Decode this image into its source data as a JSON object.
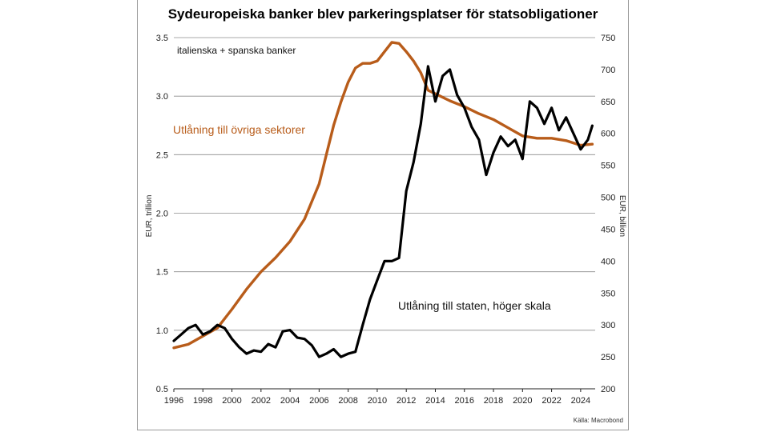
{
  "chart_data": {
    "type": "line",
    "title": "Sydeuropeiska banker blev parkeringsplatser för statsobligationer",
    "legend_text": "italienska + spanska banker",
    "ylabel_left": "EUR, trillion",
    "ylabel_right": "EUR, billion",
    "source": "Källa: Macrobond",
    "xlim": [
      1996,
      2025
    ],
    "ylim_left": [
      0.5,
      3.5
    ],
    "ylim_right": [
      200,
      750
    ],
    "x_ticks": [
      "1996",
      "1998",
      "2000",
      "2002",
      "2004",
      "2006",
      "2008",
      "2010",
      "2012",
      "2014",
      "2016",
      "2018",
      "2020",
      "2022",
      "2024"
    ],
    "y_ticks_left": [
      "0.5",
      "1.0",
      "1.5",
      "2.0",
      "2.5",
      "3.0",
      "3.5"
    ],
    "y_ticks_right": [
      "200",
      "250",
      "300",
      "350",
      "400",
      "450",
      "500",
      "550",
      "600",
      "650",
      "700",
      "750"
    ],
    "grid": "horizontal",
    "series": [
      {
        "name": "Utlåning till övriga sektorer",
        "axis": "left",
        "color": "#b85c1a",
        "points": [
          [
            1996,
            0.85
          ],
          [
            1997,
            0.88
          ],
          [
            1998,
            0.95
          ],
          [
            1999,
            1.02
          ],
          [
            2000,
            1.18
          ],
          [
            2001,
            1.35
          ],
          [
            2002,
            1.5
          ],
          [
            2003,
            1.62
          ],
          [
            2004,
            1.76
          ],
          [
            2005,
            1.95
          ],
          [
            2006,
            2.25
          ],
          [
            2006.5,
            2.5
          ],
          [
            2007,
            2.75
          ],
          [
            2007.5,
            2.95
          ],
          [
            2008,
            3.12
          ],
          [
            2008.5,
            3.24
          ],
          [
            2009,
            3.28
          ],
          [
            2009.5,
            3.28
          ],
          [
            2010,
            3.3
          ],
          [
            2010.5,
            3.38
          ],
          [
            2011,
            3.46
          ],
          [
            2011.5,
            3.45
          ],
          [
            2012,
            3.38
          ],
          [
            2012.5,
            3.3
          ],
          [
            2013,
            3.2
          ],
          [
            2013.5,
            3.05
          ],
          [
            2014,
            3.02
          ],
          [
            2015,
            2.96
          ],
          [
            2016,
            2.91
          ],
          [
            2017,
            2.85
          ],
          [
            2018,
            2.8
          ],
          [
            2019,
            2.73
          ],
          [
            2020,
            2.66
          ],
          [
            2021,
            2.64
          ],
          [
            2022,
            2.64
          ],
          [
            2023,
            2.62
          ],
          [
            2024,
            2.58
          ],
          [
            2024.8,
            2.59
          ]
        ]
      },
      {
        "name": "Utlåning till staten, höger skala",
        "axis": "right",
        "color": "#000000",
        "points": [
          [
            1996,
            275
          ],
          [
            1996.5,
            285
          ],
          [
            1997,
            295
          ],
          [
            1997.5,
            300
          ],
          [
            1998,
            285
          ],
          [
            1998.5,
            290
          ],
          [
            1999,
            300
          ],
          [
            1999.5,
            295
          ],
          [
            2000,
            278
          ],
          [
            2000.5,
            265
          ],
          [
            2001,
            255
          ],
          [
            2001.5,
            260
          ],
          [
            2002,
            258
          ],
          [
            2002.5,
            270
          ],
          [
            2003,
            265
          ],
          [
            2003.5,
            290
          ],
          [
            2004,
            292
          ],
          [
            2004.5,
            280
          ],
          [
            2005,
            278
          ],
          [
            2005.5,
            268
          ],
          [
            2006,
            250
          ],
          [
            2006.5,
            255
          ],
          [
            2007,
            262
          ],
          [
            2007.5,
            250
          ],
          [
            2008,
            255
          ],
          [
            2008.5,
            258
          ],
          [
            2009,
            300
          ],
          [
            2009.5,
            340
          ],
          [
            2010,
            370
          ],
          [
            2010.5,
            400
          ],
          [
            2011,
            400
          ],
          [
            2011.5,
            405
          ],
          [
            2012,
            510
          ],
          [
            2012.5,
            555
          ],
          [
            2013,
            615
          ],
          [
            2013.5,
            705
          ],
          [
            2014,
            650
          ],
          [
            2014.5,
            690
          ],
          [
            2015,
            700
          ],
          [
            2015.5,
            660
          ],
          [
            2016,
            640
          ],
          [
            2016.5,
            610
          ],
          [
            2017,
            590
          ],
          [
            2017.5,
            535
          ],
          [
            2018,
            570
          ],
          [
            2018.5,
            595
          ],
          [
            2019,
            580
          ],
          [
            2019.5,
            590
          ],
          [
            2020,
            560
          ],
          [
            2020.5,
            650
          ],
          [
            2021,
            640
          ],
          [
            2021.5,
            615
          ],
          [
            2022,
            640
          ],
          [
            2022.5,
            605
          ],
          [
            2023,
            625
          ],
          [
            2023.5,
            600
          ],
          [
            2024,
            575
          ],
          [
            2024.5,
            590
          ],
          [
            2024.8,
            612
          ]
        ]
      }
    ]
  }
}
